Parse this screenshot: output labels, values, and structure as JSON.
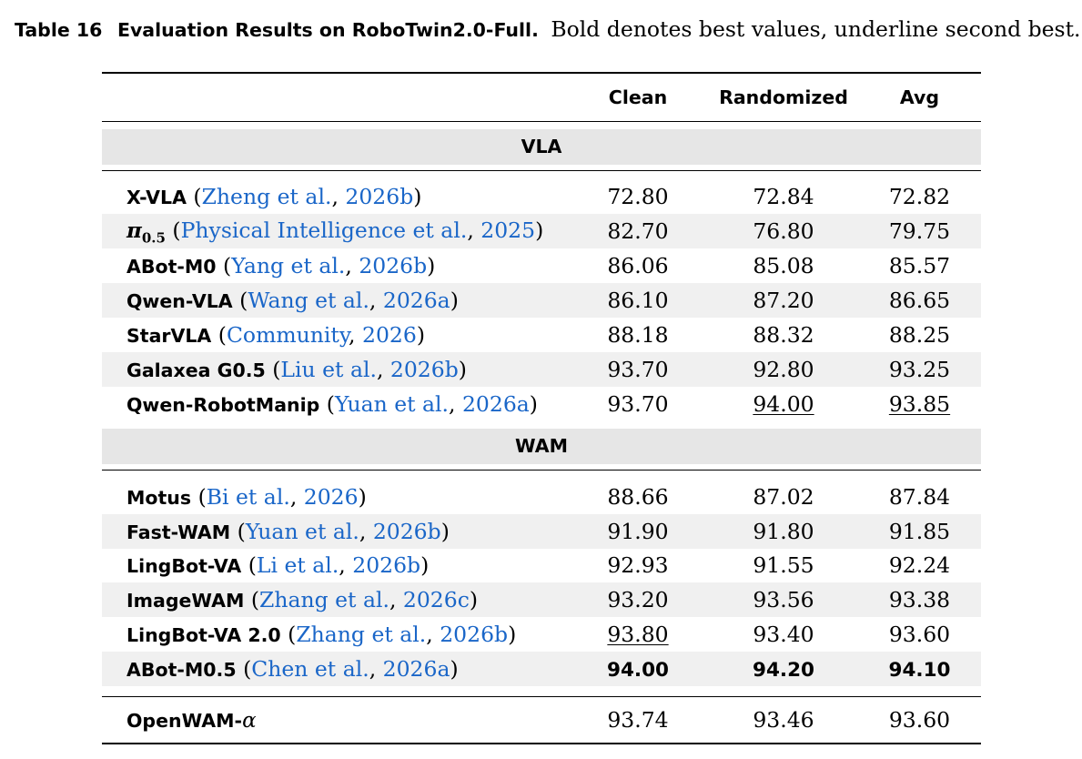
{
  "caption": {
    "label": "Table 16",
    "title": "Evaluation Results on RoboTwin2.0-Full.",
    "description": "Bold denotes best values, underline second best."
  },
  "table": {
    "headers": [
      "",
      "Clean",
      "Randomized",
      "Avg"
    ],
    "groups": [
      {
        "name": "VLA",
        "rows": [
          {
            "method": "X-VLA",
            "cite_author": "Zheng et al.",
            "cite_year": "2026b",
            "clean": "72.80",
            "randomized": "72.84",
            "avg": "72.82"
          },
          {
            "method": "π",
            "method_sub": "0.5",
            "cite_author": "Physical Intelligence et al.",
            "cite_year": "2025",
            "clean": "82.70",
            "randomized": "76.80",
            "avg": "79.75"
          },
          {
            "method": "ABot-M0",
            "cite_author": "Yang et al.",
            "cite_year": "2026b",
            "clean": "86.06",
            "randomized": "85.08",
            "avg": "85.57"
          },
          {
            "method": "Qwen-VLA",
            "cite_author": "Wang et al.",
            "cite_year": "2026a",
            "clean": "86.10",
            "randomized": "87.20",
            "avg": "86.65"
          },
          {
            "method": "StarVLA",
            "cite_author": "Community",
            "cite_year": "2026",
            "clean": "88.18",
            "randomized": "88.32",
            "avg": "88.25"
          },
          {
            "method": "Galaxea G0.5",
            "cite_author": "Liu et al.",
            "cite_year": "2026b",
            "clean": "93.70",
            "randomized": "92.80",
            "avg": "93.25"
          },
          {
            "method": "Qwen-RobotManip",
            "cite_author": "Yuan et al.",
            "cite_year": "2026a",
            "clean": "93.70",
            "randomized": "94.00",
            "avg": "93.85"
          }
        ]
      },
      {
        "name": "WAM",
        "rows": [
          {
            "method": "Motus",
            "cite_author": "Bi et al.",
            "cite_year": "2026",
            "clean": "88.66",
            "randomized": "87.02",
            "avg": "87.84"
          },
          {
            "method": "Fast-WAM",
            "cite_author": "Yuan et al.",
            "cite_year": "2026b",
            "clean": "91.90",
            "randomized": "91.80",
            "avg": "91.85"
          },
          {
            "method": "LingBot-VA",
            "cite_author": "Li et al.",
            "cite_year": "2026b",
            "clean": "92.93",
            "randomized": "91.55",
            "avg": "92.24"
          },
          {
            "method": "ImageWAM",
            "cite_author": "Zhang et al.",
            "cite_year": "2026c",
            "clean": "93.20",
            "randomized": "93.56",
            "avg": "93.38"
          },
          {
            "method": "LingBot-VA 2.0",
            "cite_author": "Zhang et al.",
            "cite_year": "2026b",
            "clean": "93.80",
            "randomized": "93.40",
            "avg": "93.60"
          },
          {
            "method": "ABot-M0.5",
            "cite_author": "Chen et al.",
            "cite_year": "2026a",
            "clean": "94.00",
            "randomized": "94.20",
            "avg": "94.10"
          }
        ]
      }
    ],
    "ours": {
      "method": "OpenWAM-",
      "method_symbol": "α",
      "clean": "93.74",
      "randomized": "93.46",
      "avg": "93.60"
    }
  },
  "colors": {
    "link": "#1a66c8",
    "band": "#e6e6e6",
    "shade": "#f0f0f0"
  }
}
